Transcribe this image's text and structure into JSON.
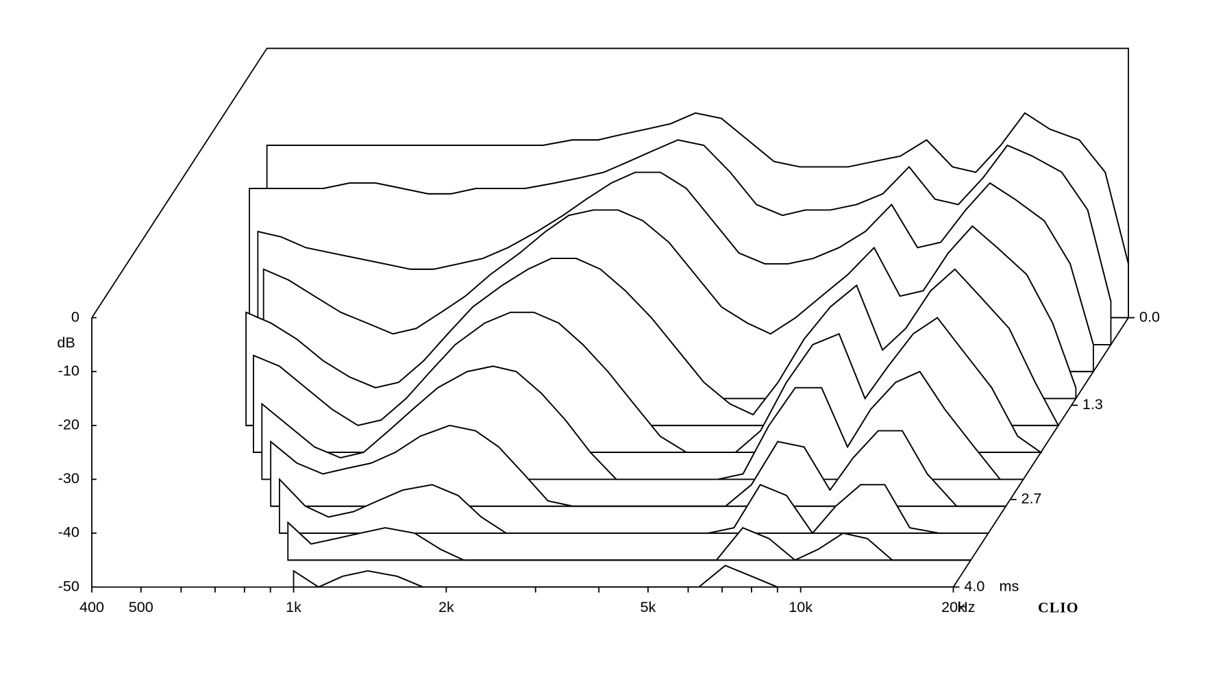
{
  "chart_data": {
    "type": "waterfall",
    "brand": "CLIO",
    "y_label": "dB",
    "x_unit": "Hz",
    "z_unit": "ms",
    "xscale": "log",
    "xlim": [
      400,
      20000
    ],
    "xticks": [
      400,
      500,
      {
        "value": 1000,
        "label": "1k"
      },
      {
        "value": 2000,
        "label": "2k"
      },
      {
        "value": 5000,
        "label": "5k"
      },
      {
        "value": 10000,
        "label": "10k"
      },
      {
        "value": 20000,
        "label": "20k"
      }
    ],
    "xminor_ticks": [
      600,
      700,
      800,
      900,
      3000,
      4000,
      6000,
      7000,
      8000,
      9000
    ],
    "ylim": [
      -50,
      0
    ],
    "yticks": [
      0,
      -10,
      -20,
      -30,
      -40,
      -50
    ],
    "zlim": [
      0,
      4
    ],
    "zticks": [
      {
        "value": 0,
        "label": "0.0"
      },
      1.3,
      2.7,
      {
        "value": 4,
        "label": "4.0"
      }
    ],
    "color": "#000000",
    "x": [
      400,
      450,
      500,
      560,
      630,
      710,
      800,
      900,
      1000,
      1120,
      1250,
      1400,
      1600,
      1800,
      2000,
      2240,
      2500,
      2800,
      3150,
      3550,
      4000,
      4500,
      5000,
      5600,
      6300,
      7100,
      8000,
      9000,
      10000,
      11200,
      12500,
      14000,
      16000,
      18000,
      20000
    ],
    "series": [
      {
        "time": 0.0,
        "values": [
          -18,
          -18,
          -18,
          -18,
          -18,
          -18,
          -18,
          -18,
          -18,
          -18,
          -18,
          -18,
          -17,
          -17,
          -16,
          -15,
          -14,
          -12,
          -13,
          -17,
          -21,
          -22,
          -22,
          -22,
          -21,
          -20,
          -17,
          -22,
          -23,
          -18,
          -12,
          -15,
          -17,
          -23,
          -40
        ]
      },
      {
        "time": 0.4,
        "values": [
          -21,
          -21,
          -21,
          -21,
          -20,
          -20,
          -21,
          -22,
          -22,
          -21,
          -21,
          -21,
          -20,
          -19,
          -18,
          -16,
          -14,
          -12,
          -13,
          -18,
          -24,
          -26,
          -25,
          -25,
          -24,
          -22,
          -17,
          -23,
          -24,
          -19,
          -13,
          -15,
          -18,
          -25,
          -42
        ]
      },
      {
        "time": 0.8,
        "values": [
          null,
          -24,
          -25,
          -27,
          -28,
          -29,
          -30,
          -31,
          -31,
          -30,
          -29,
          -27,
          -24,
          -21,
          -18,
          -15,
          -13,
          -13,
          -16,
          -22,
          -28,
          -30,
          -30,
          -29,
          -27,
          -24,
          -19,
          -27,
          -26,
          -20,
          -15,
          -18,
          -22,
          -30,
          -45
        ]
      },
      {
        "time": 1.2,
        "values": [
          null,
          null,
          -26,
          -28,
          -31,
          -34,
          -36,
          -38,
          -37,
          -34,
          -31,
          -27,
          -23,
          -19,
          -16,
          -15,
          -15,
          -17,
          -21,
          -27,
          -33,
          -36,
          -38,
          -35,
          -31,
          -27,
          -22,
          -31,
          -30,
          -23,
          -18,
          -22,
          -27,
          -36,
          -48
        ]
      },
      {
        "time": 1.6,
        "values": [
          null,
          null,
          -29,
          -31,
          -34,
          -38,
          -41,
          -43,
          -42,
          -38,
          -33,
          -28,
          -24,
          -21,
          -19,
          -19,
          -21,
          -25,
          -30,
          -36,
          -42,
          -46,
          -48,
          -42,
          -34,
          -28,
          -24,
          -36,
          -32,
          -25,
          -21,
          -26,
          -32,
          -42,
          -50
        ]
      },
      {
        "time": 2.0,
        "values": [
          null,
          null,
          null,
          -32,
          -34,
          -38,
          -42,
          -45,
          -44,
          -40,
          -35,
          -30,
          -26,
          -24,
          -24,
          -26,
          -30,
          -35,
          -41,
          -47,
          -50,
          -50,
          -50,
          -46,
          -37,
          -30,
          -28,
          -40,
          -34,
          -28,
          -25,
          -31,
          -38,
          -47,
          -50
        ]
      },
      {
        "time": 2.4,
        "values": [
          null,
          null,
          null,
          null,
          -36,
          -40,
          -44,
          -46,
          -45,
          -41,
          -37,
          -33,
          -30,
          -29,
          -30,
          -34,
          -39,
          -45,
          -50,
          -50,
          -50,
          -50,
          -50,
          -49,
          -40,
          -33,
          -33,
          -44,
          -37,
          -32,
          -30,
          -37,
          -44,
          -50,
          -50
        ]
      },
      {
        "time": 2.8,
        "values": [
          null,
          null,
          null,
          null,
          null,
          -38,
          -42,
          -44,
          -43,
          -42,
          -40,
          -37,
          -35,
          -36,
          -39,
          -44,
          -49,
          -50,
          -50,
          -50,
          -50,
          -50,
          -50,
          -50,
          -46,
          -38,
          -39,
          -47,
          -41,
          -36,
          -36,
          -44,
          -50,
          -50,
          -50
        ]
      },
      {
        "time": 3.2,
        "values": [
          null,
          null,
          null,
          null,
          null,
          null,
          -40,
          -45,
          -47,
          -46,
          -44,
          -42,
          -41,
          -43,
          -47,
          -50,
          -50,
          -50,
          -50,
          -50,
          -50,
          -50,
          -50,
          -50,
          -49,
          -41,
          -43,
          -50,
          -45,
          -41,
          -41,
          -49,
          -50,
          -50,
          -50
        ]
      },
      {
        "time": 3.6,
        "values": [
          null,
          null,
          null,
          null,
          null,
          null,
          null,
          -43,
          -47,
          -46,
          -45,
          -44,
          -45,
          -48,
          -50,
          -50,
          -50,
          -50,
          -50,
          -50,
          -50,
          -50,
          -50,
          -50,
          -50,
          -44,
          -46,
          -50,
          -48,
          -45,
          -46,
          -50,
          -50,
          -50,
          -50
        ]
      },
      {
        "time": 4.0,
        "values": [
          null,
          null,
          null,
          null,
          null,
          null,
          null,
          null,
          -47,
          -50,
          -48,
          -47,
          -48,
          -50,
          -50,
          -50,
          -50,
          -50,
          -50,
          -50,
          -50,
          -50,
          -50,
          -50,
          -50,
          -46,
          -48,
          -50,
          -50,
          -50,
          -50,
          -50,
          -50,
          -50,
          -50
        ]
      }
    ]
  }
}
